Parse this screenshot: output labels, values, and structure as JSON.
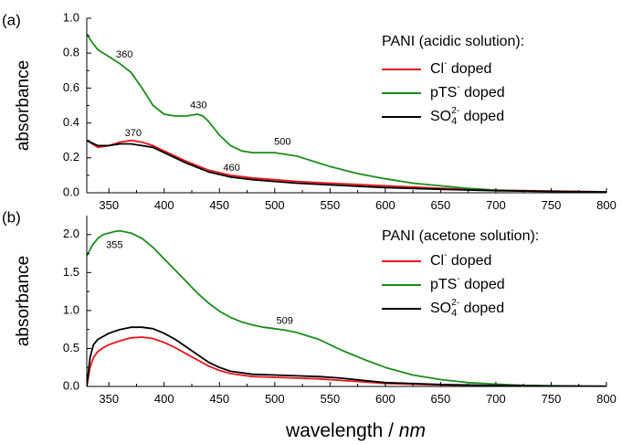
{
  "chart_data": [
    {
      "panel": "(a)",
      "type": "line",
      "ylabel": "absorbance",
      "xlabel": "",
      "xlim": [
        330,
        800
      ],
      "ylim": [
        0,
        1.0
      ],
      "xticks": [
        350,
        400,
        450,
        500,
        550,
        600,
        650,
        700,
        750,
        800
      ],
      "yticks": [
        "0.0",
        "0.2",
        "0.4",
        "0.6",
        "0.8",
        "1.0"
      ],
      "legend_title": "PANI (acidic solution):",
      "legend_position": "top-right",
      "series": [
        {
          "name": "Cl⁻ doped",
          "label_base": "Cl",
          "label_sup": "-",
          "label_sub": "",
          "label_tail": " doped",
          "color": "#e8151b",
          "x": [
            330,
            340,
            350,
            360,
            370,
            380,
            390,
            400,
            420,
            440,
            460,
            480,
            500,
            520,
            550,
            600,
            650,
            700,
            750,
            800
          ],
          "y": [
            0.3,
            0.26,
            0.27,
            0.29,
            0.3,
            0.29,
            0.27,
            0.24,
            0.18,
            0.13,
            0.1,
            0.085,
            0.075,
            0.065,
            0.055,
            0.04,
            0.025,
            0.015,
            0.01,
            0.005
          ]
        },
        {
          "name": "pTS⁻ doped",
          "label_base": "pTS",
          "label_sup": "-",
          "label_sub": "",
          "label_tail": " doped",
          "color": "#1b8c1b",
          "x": [
            330,
            335,
            340,
            350,
            360,
            370,
            380,
            390,
            400,
            410,
            420,
            430,
            435,
            440,
            450,
            460,
            470,
            480,
            490,
            500,
            510,
            520,
            530,
            540,
            550,
            575,
            600,
            625,
            650,
            675,
            700,
            725,
            750,
            775,
            800
          ],
          "y": [
            0.91,
            0.86,
            0.82,
            0.78,
            0.74,
            0.69,
            0.6,
            0.5,
            0.45,
            0.44,
            0.44,
            0.45,
            0.44,
            0.41,
            0.33,
            0.27,
            0.24,
            0.23,
            0.23,
            0.23,
            0.22,
            0.21,
            0.19,
            0.17,
            0.15,
            0.11,
            0.08,
            0.055,
            0.04,
            0.025,
            0.015,
            0.01,
            0.008,
            0.005,
            0.004
          ]
        },
        {
          "name": "SO₄²⁻ doped",
          "label_base": "SO",
          "label_sup": "2-",
          "label_sub": "4",
          "label_tail": " doped",
          "color": "#000000",
          "x": [
            330,
            340,
            350,
            360,
            370,
            380,
            390,
            400,
            420,
            440,
            460,
            480,
            500,
            520,
            550,
            600,
            650,
            700,
            750,
            800
          ],
          "y": [
            0.3,
            0.27,
            0.27,
            0.28,
            0.28,
            0.27,
            0.26,
            0.23,
            0.17,
            0.12,
            0.09,
            0.075,
            0.065,
            0.055,
            0.045,
            0.03,
            0.02,
            0.012,
            0.008,
            0.004
          ]
        }
      ],
      "annotations": [
        {
          "text": "360",
          "x": 364,
          "y": 0.79
        },
        {
          "text": "430",
          "x": 431,
          "y": 0.5
        },
        {
          "text": "370",
          "x": 372,
          "y": 0.34
        },
        {
          "text": "460",
          "x": 461,
          "y": 0.14
        },
        {
          "text": "500",
          "x": 507,
          "y": 0.29
        }
      ]
    },
    {
      "panel": "(b)",
      "type": "line",
      "ylabel": "absorbance",
      "xlabel": "wavelength / nm",
      "xlim": [
        330,
        800
      ],
      "ylim": [
        0,
        2.25
      ],
      "xticks": [
        350,
        400,
        450,
        500,
        550,
        600,
        650,
        700,
        750,
        800
      ],
      "yticks": [
        "0.0",
        "0.5",
        "1.0",
        "1.5",
        "2.0"
      ],
      "legend_title": "PANI (acetone solution):",
      "legend_position": "top-right",
      "series": [
        {
          "name": "Cl⁻ doped",
          "label_base": "Cl",
          "label_sup": "-",
          "label_sub": "",
          "label_tail": " doped",
          "color": "#e8151b",
          "x": [
            330,
            333,
            336,
            340,
            345,
            350,
            360,
            370,
            380,
            390,
            400,
            410,
            420,
            430,
            440,
            450,
            460,
            480,
            500,
            520,
            540,
            560,
            580,
            600,
            650,
            700,
            750,
            800
          ],
          "y": [
            0.0,
            0.25,
            0.38,
            0.46,
            0.51,
            0.55,
            0.6,
            0.64,
            0.65,
            0.63,
            0.58,
            0.51,
            0.43,
            0.35,
            0.27,
            0.21,
            0.17,
            0.13,
            0.12,
            0.11,
            0.1,
            0.08,
            0.06,
            0.04,
            0.02,
            0.01,
            0.005,
            0.0
          ]
        },
        {
          "name": "pTS⁻ doped",
          "label_base": "pTS",
          "label_sup": "-",
          "label_sub": "",
          "label_tail": " doped",
          "color": "#1b8c1b",
          "x": [
            330,
            335,
            340,
            345,
            350,
            355,
            360,
            370,
            380,
            390,
            400,
            410,
            420,
            430,
            440,
            450,
            460,
            470,
            480,
            490,
            500,
            510,
            520,
            540,
            560,
            580,
            600,
            625,
            650,
            675,
            700,
            725,
            750,
            775,
            800
          ],
          "y": [
            1.72,
            1.86,
            1.95,
            2.0,
            2.02,
            2.04,
            2.05,
            2.02,
            1.95,
            1.83,
            1.68,
            1.53,
            1.38,
            1.23,
            1.1,
            0.99,
            0.91,
            0.85,
            0.81,
            0.78,
            0.76,
            0.74,
            0.71,
            0.62,
            0.48,
            0.36,
            0.25,
            0.15,
            0.09,
            0.05,
            0.03,
            0.015,
            0.008,
            0.004,
            0.002
          ]
        },
        {
          "name": "SO₄²⁻ doped",
          "label_base": "SO",
          "label_sup": "2-",
          "label_sub": "4",
          "label_tail": " doped",
          "color": "#000000",
          "x": [
            330,
            333,
            336,
            340,
            345,
            350,
            360,
            370,
            380,
            390,
            400,
            410,
            420,
            430,
            440,
            450,
            460,
            480,
            500,
            520,
            540,
            560,
            580,
            600,
            650,
            700,
            750,
            800
          ],
          "y": [
            0.0,
            0.38,
            0.55,
            0.62,
            0.66,
            0.7,
            0.75,
            0.78,
            0.78,
            0.76,
            0.7,
            0.62,
            0.52,
            0.42,
            0.32,
            0.25,
            0.2,
            0.16,
            0.15,
            0.14,
            0.13,
            0.11,
            0.08,
            0.05,
            0.025,
            0.012,
            0.006,
            0.002
          ]
        }
      ],
      "annotations": [
        {
          "text": "355",
          "x": 355,
          "y": 1.86
        },
        {
          "text": "509",
          "x": 509,
          "y": 0.86
        }
      ]
    }
  ]
}
